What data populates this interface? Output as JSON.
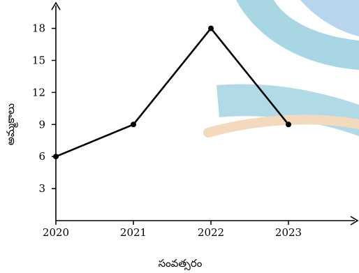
{
  "chart_data": {
    "type": "line",
    "xlabel": "సంవత్సరం",
    "ylabel": "అమ్మకాలు",
    "x": [
      2020,
      2021,
      2022,
      2023
    ],
    "y": [
      6,
      9,
      18,
      9
    ],
    "x_ticks": [
      "2020",
      "2021",
      "2022",
      "2023"
    ],
    "y_ticks": [
      "3",
      "6",
      "9",
      "12",
      "15",
      "18"
    ],
    "ylim": [
      0,
      20.5
    ],
    "grid": false,
    "line_color": "#000000",
    "background_decoration_colors": [
      "#a9d6e3",
      "#b7d5ec",
      "#f3d9bd"
    ]
  }
}
